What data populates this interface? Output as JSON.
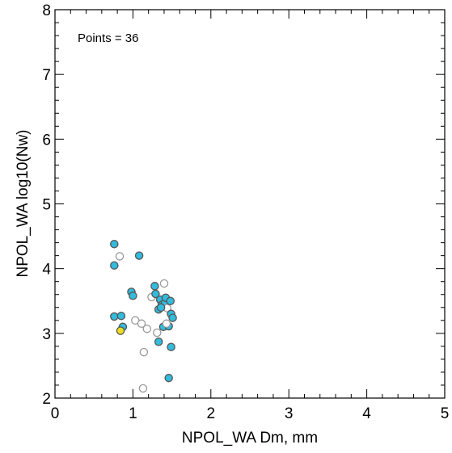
{
  "chart_data": {
    "type": "scatter",
    "title": "",
    "xlabel": "NPOL_WA Dm, mm",
    "ylabel": "NPOL_WA log10(Nw)",
    "annotation": "Points = 36",
    "xlim": [
      0,
      5
    ],
    "ylim": [
      2,
      8
    ],
    "x_ticks": [
      0,
      1,
      2,
      3,
      4,
      5
    ],
    "y_ticks": [
      2,
      3,
      4,
      5,
      6,
      7,
      8
    ],
    "x_minor_step": 0.2,
    "y_minor_step": 0.2,
    "grid": false,
    "colors": {
      "filled": "#33bbdd",
      "hollow": "#ffffff",
      "highlight": "#eedd22",
      "edge_filled": "#555555",
      "edge_hollow": "#999999"
    },
    "points": [
      {
        "x": 0.76,
        "y": 4.38,
        "style": "filled"
      },
      {
        "x": 0.76,
        "y": 4.05,
        "style": "filled"
      },
      {
        "x": 0.76,
        "y": 3.26,
        "style": "filled"
      },
      {
        "x": 0.83,
        "y": 4.19,
        "style": "hollow"
      },
      {
        "x": 0.85,
        "y": 3.27,
        "style": "filled"
      },
      {
        "x": 0.87,
        "y": 3.1,
        "style": "filled"
      },
      {
        "x": 0.84,
        "y": 3.04,
        "style": "highlight"
      },
      {
        "x": 0.98,
        "y": 3.64,
        "style": "filled"
      },
      {
        "x": 1.0,
        "y": 3.58,
        "style": "filled"
      },
      {
        "x": 1.03,
        "y": 3.2,
        "style": "hollow"
      },
      {
        "x": 1.08,
        "y": 4.2,
        "style": "filled"
      },
      {
        "x": 1.11,
        "y": 3.15,
        "style": "hollow"
      },
      {
        "x": 1.14,
        "y": 2.71,
        "style": "hollow"
      },
      {
        "x": 1.13,
        "y": 2.15,
        "style": "hollow"
      },
      {
        "x": 1.18,
        "y": 3.07,
        "style": "hollow"
      },
      {
        "x": 1.24,
        "y": 3.56,
        "style": "hollow"
      },
      {
        "x": 1.28,
        "y": 3.73,
        "style": "filled"
      },
      {
        "x": 1.29,
        "y": 3.61,
        "style": "filled"
      },
      {
        "x": 1.31,
        "y": 3.01,
        "style": "hollow"
      },
      {
        "x": 1.33,
        "y": 3.37,
        "style": "filled"
      },
      {
        "x": 1.33,
        "y": 2.87,
        "style": "filled"
      },
      {
        "x": 1.35,
        "y": 3.52,
        "style": "filled"
      },
      {
        "x": 1.37,
        "y": 3.44,
        "style": "filled"
      },
      {
        "x": 1.39,
        "y": 3.1,
        "style": "filled"
      },
      {
        "x": 1.4,
        "y": 3.77,
        "style": "hollow"
      },
      {
        "x": 1.41,
        "y": 3.47,
        "style": "filled"
      },
      {
        "x": 1.42,
        "y": 3.55,
        "style": "filled"
      },
      {
        "x": 1.44,
        "y": 3.39,
        "style": "hollow"
      },
      {
        "x": 1.46,
        "y": 3.11,
        "style": "filled"
      },
      {
        "x": 1.46,
        "y": 2.31,
        "style": "filled"
      },
      {
        "x": 1.48,
        "y": 3.5,
        "style": "filled"
      },
      {
        "x": 1.49,
        "y": 3.3,
        "style": "filled"
      },
      {
        "x": 1.49,
        "y": 2.79,
        "style": "filled"
      },
      {
        "x": 1.51,
        "y": 3.24,
        "style": "filled"
      },
      {
        "x": 1.43,
        "y": 3.15,
        "style": "hollow"
      },
      {
        "x": 1.36,
        "y": 3.4,
        "style": "filled"
      }
    ]
  }
}
